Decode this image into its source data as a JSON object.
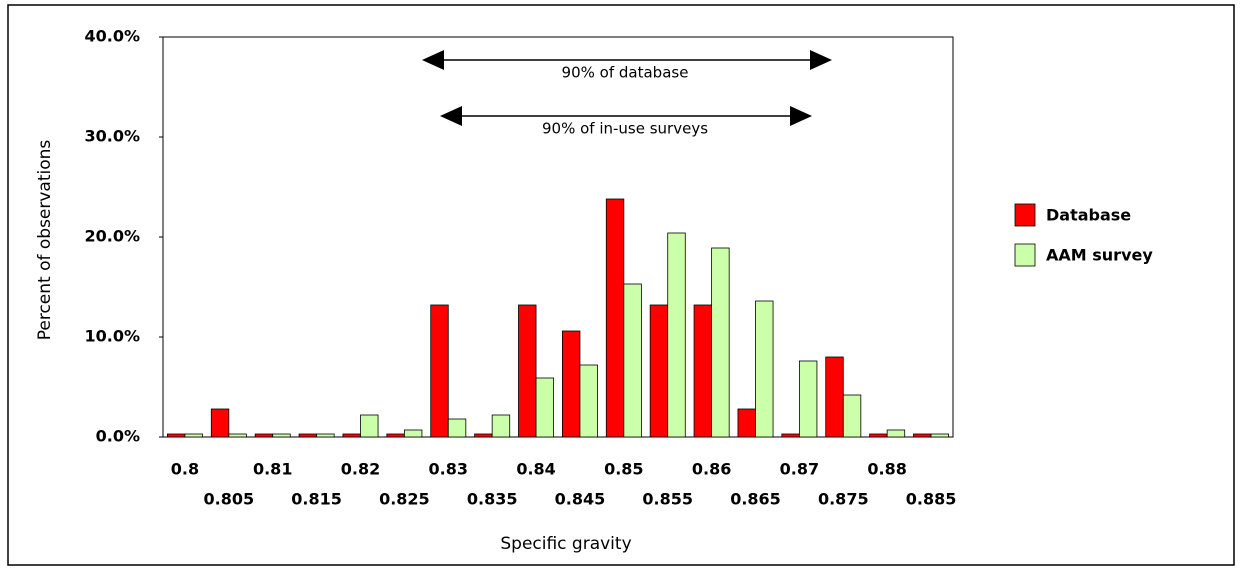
{
  "chart_data": {
    "type": "bar",
    "y_label": "Percent of observations",
    "x_label": "Specific gravity",
    "categories": [
      "0.8",
      "0.805",
      "0.81",
      "0.815",
      "0.82",
      "0.825",
      "0.83",
      "0.835",
      "0.84",
      "0.845",
      "0.85",
      "0.855",
      "0.86",
      "0.865",
      "0.87",
      "0.875",
      "0.88",
      "0.885"
    ],
    "series": [
      {
        "name": "Database",
        "color": "#ff0000",
        "values": [
          0.3,
          2.8,
          0.3,
          0.3,
          0.3,
          0.3,
          13.2,
          0.3,
          13.2,
          10.6,
          23.8,
          13.2,
          13.2,
          2.8,
          0.3,
          8.0,
          0.3,
          0.3
        ]
      },
      {
        "name": "AAM survey",
        "color": "#ccffaa",
        "values": [
          0.3,
          0.3,
          0.3,
          0.3,
          2.2,
          0.7,
          1.8,
          2.2,
          5.9,
          7.2,
          15.3,
          20.4,
          18.9,
          13.6,
          7.6,
          4.2,
          0.7,
          0.3
        ]
      }
    ],
    "ylim": [
      0,
      40
    ],
    "yticks": [
      {
        "value": 0,
        "label": "0.0%"
      },
      {
        "value": 10,
        "label": "10.0%"
      },
      {
        "value": 20,
        "label": "20.0%"
      },
      {
        "value": 30,
        "label": "30.0%"
      },
      {
        "value": 40,
        "label": "40.0%"
      }
    ],
    "annotations": [
      "90% of database",
      "90% of in-use surveys"
    ],
    "legend": "right"
  }
}
